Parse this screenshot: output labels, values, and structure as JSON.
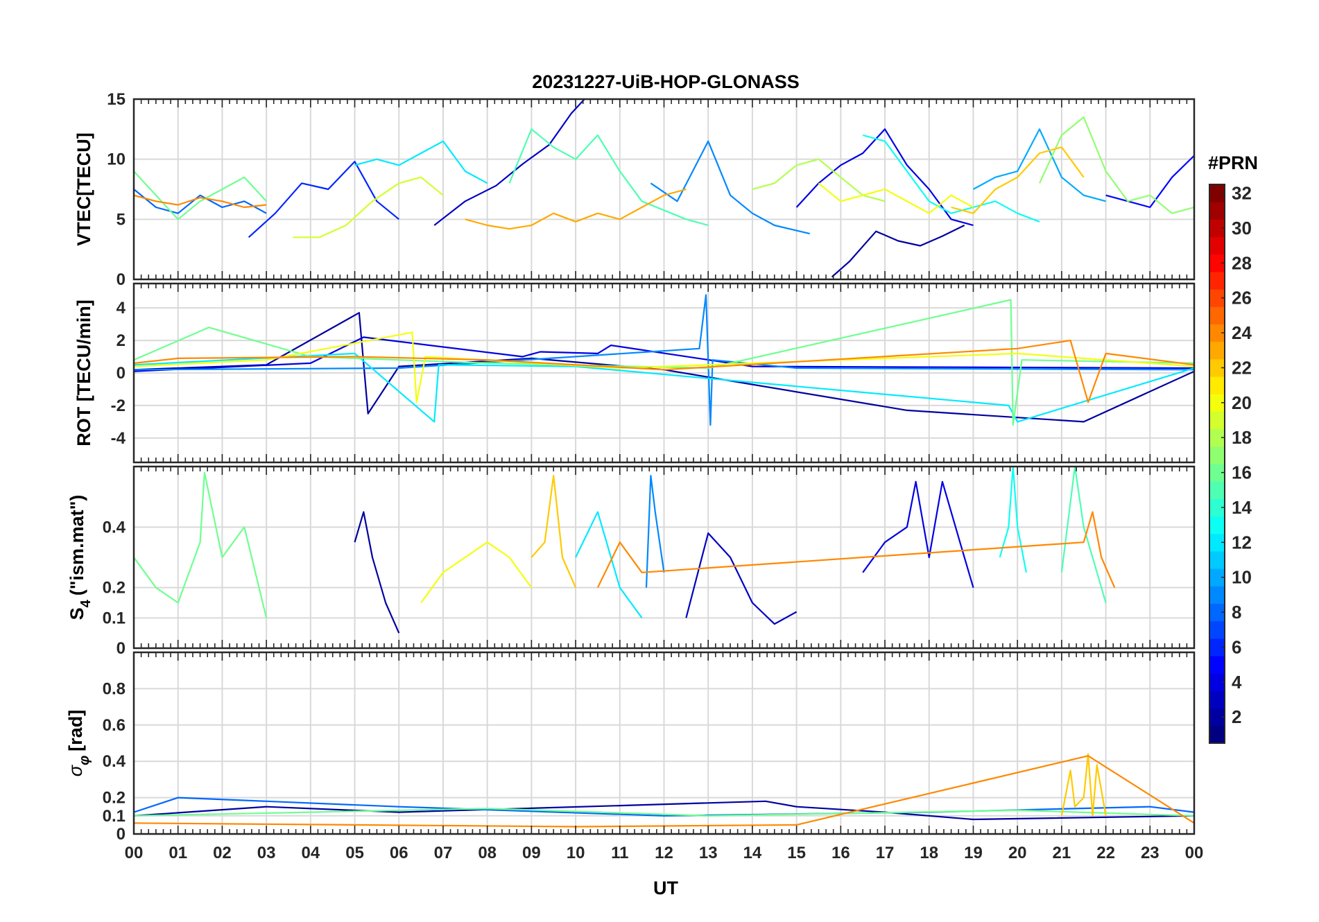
{
  "figure": {
    "title": "20231227-UiB-HOP-GLONASS",
    "xlabel": "UT",
    "x_ticks": [
      "00",
      "01",
      "02",
      "03",
      "04",
      "05",
      "06",
      "07",
      "08",
      "09",
      "10",
      "11",
      "12",
      "13",
      "14",
      "15",
      "16",
      "17",
      "18",
      "19",
      "20",
      "21",
      "22",
      "23",
      "00"
    ]
  },
  "colorbar": {
    "label": "#PRN",
    "range": [
      1,
      32
    ],
    "ticks": [
      2,
      4,
      6,
      8,
      10,
      12,
      14,
      16,
      18,
      20,
      22,
      24,
      26,
      28,
      30,
      32
    ],
    "tick_labels": [
      "2",
      "4",
      "6",
      "8",
      "10",
      "12",
      "14",
      "16",
      "18",
      "20",
      "22",
      "24",
      "26",
      "28",
      "30",
      "32"
    ],
    "colormap": "jet"
  },
  "chart_data": [
    {
      "type": "line",
      "panel": "vtec",
      "ylabel": "VTEC[TECU]",
      "xlim": [
        0,
        24
      ],
      "ylim": [
        0,
        15
      ],
      "yticks": [
        0,
        5,
        10,
        15
      ],
      "ytick_labels": [
        "0",
        "5",
        "10",
        "15"
      ],
      "series": [
        {
          "prn": 2,
          "x": [
            15.8,
            16.2,
            16.8,
            17.3,
            17.8,
            18.3,
            18.8
          ],
          "values": [
            0.2,
            1.5,
            4.0,
            3.2,
            2.8,
            3.6,
            4.5
          ]
        },
        {
          "prn": 3,
          "x": [
            6.8,
            7.5,
            8.2,
            8.8,
            9.4,
            9.9,
            10.2
          ],
          "values": [
            4.5,
            6.5,
            7.8,
            9.6,
            11.2,
            13.8,
            15.0
          ]
        },
        {
          "prn": 4,
          "x": [
            15.0,
            15.5,
            16.0,
            16.5,
            17.0,
            17.5,
            18.0,
            18.5,
            19.0
          ],
          "values": [
            6.0,
            8.0,
            9.5,
            10.5,
            12.5,
            9.5,
            7.5,
            5.0,
            4.5
          ]
        },
        {
          "prn": 5,
          "x": [
            22.0,
            22.5,
            23.0,
            23.5,
            24.0
          ],
          "values": [
            7.0,
            6.5,
            6.0,
            8.5,
            10.3
          ]
        },
        {
          "prn": 6,
          "x": [
            2.6,
            3.2,
            3.8,
            4.4,
            5.0,
            5.5,
            6.0
          ],
          "values": [
            3.5,
            5.5,
            8.0,
            7.5,
            9.8,
            6.5,
            5.0
          ]
        },
        {
          "prn": 8,
          "x": [
            0.0,
            0.5,
            1.0,
            1.5,
            2.0,
            2.5,
            3.0
          ],
          "values": [
            7.5,
            6.0,
            5.5,
            7.0,
            6.0,
            6.5,
            5.5
          ]
        },
        {
          "prn": 9,
          "x": [
            11.7,
            12.3,
            13.0,
            13.5,
            14.0,
            14.5,
            15.3
          ],
          "values": [
            8.0,
            6.5,
            11.5,
            7.0,
            5.5,
            4.5,
            3.8
          ]
        },
        {
          "prn": 10,
          "x": [
            19.0,
            19.5,
            20.0,
            20.5,
            21.0,
            21.5,
            22.0
          ],
          "values": [
            7.5,
            8.5,
            9.0,
            12.5,
            8.5,
            7.0,
            6.5
          ]
        },
        {
          "prn": 12,
          "x": [
            5.0,
            5.5,
            6.0,
            6.5,
            7.0,
            7.5,
            8.0
          ],
          "values": [
            9.5,
            10.0,
            9.5,
            10.5,
            11.5,
            9.0,
            8.0
          ]
        },
        {
          "prn": 13,
          "x": [
            16.5,
            17.0,
            17.5,
            18.0,
            18.5,
            19.0,
            19.5,
            20.0,
            20.5
          ],
          "values": [
            12.0,
            11.5,
            9.0,
            6.5,
            5.5,
            6.0,
            6.5,
            5.5,
            4.8
          ]
        },
        {
          "prn": 15,
          "x": [
            8.5,
            9.0,
            9.5,
            10.0,
            10.5,
            11.0,
            11.5,
            12.5,
            13.0
          ],
          "values": [
            8.0,
            12.5,
            11.0,
            10.0,
            12.0,
            9.0,
            6.5,
            5.0,
            4.5
          ]
        },
        {
          "prn": 16,
          "x": [
            0.0,
            0.5,
            1.0,
            1.5,
            2.0,
            2.5,
            3.0
          ],
          "values": [
            9.0,
            7.0,
            5.0,
            6.5,
            7.5,
            8.5,
            6.5
          ]
        },
        {
          "prn": 17,
          "x": [
            20.5,
            21.0,
            21.5,
            22.0,
            22.5,
            23.0,
            23.5,
            24.0
          ],
          "values": [
            8.0,
            12.0,
            13.5,
            9.0,
            6.5,
            7.0,
            5.5,
            6.0
          ]
        },
        {
          "prn": 18,
          "x": [
            14.0,
            14.5,
            15.0,
            15.5,
            16.0,
            16.5,
            17.0
          ],
          "values": [
            7.5,
            8.0,
            9.5,
            10.0,
            8.5,
            7.0,
            6.5
          ]
        },
        {
          "prn": 19,
          "x": [
            3.6,
            4.2,
            4.8,
            5.4,
            6.0,
            6.5,
            7.0
          ],
          "values": [
            3.5,
            3.5,
            4.5,
            6.5,
            8.0,
            8.5,
            7.0
          ]
        },
        {
          "prn": 20,
          "x": [
            15.5,
            16.0,
            16.5,
            17.0,
            17.5,
            18.0,
            18.5,
            19.0
          ],
          "values": [
            8.0,
            6.5,
            7.0,
            7.5,
            6.5,
            5.5,
            7.0,
            6.0
          ]
        },
        {
          "prn": 22,
          "x": [
            18.5,
            19.0,
            19.5,
            20.0,
            20.5,
            21.0,
            21.5
          ],
          "values": [
            6.0,
            5.5,
            7.5,
            8.5,
            10.5,
            11.0,
            8.5
          ]
        },
        {
          "prn": 23,
          "x": [
            7.5,
            8.0,
            8.5,
            9.0,
            9.5,
            10.0,
            10.5,
            11.0,
            11.5,
            12.0,
            12.5
          ],
          "values": [
            5.0,
            4.5,
            4.2,
            4.5,
            5.5,
            4.8,
            5.5,
            5.0,
            6.0,
            7.0,
            7.5
          ]
        },
        {
          "prn": 24,
          "x": [
            0.0,
            0.5,
            1.0,
            1.5,
            2.0,
            2.5,
            3.0
          ],
          "values": [
            7.0,
            6.5,
            6.2,
            6.8,
            6.5,
            6.0,
            6.2
          ]
        }
      ]
    },
    {
      "type": "line",
      "panel": "rot",
      "ylabel": "ROT [TECU/min]",
      "xlim": [
        0,
        24
      ],
      "ylim": [
        -5.5,
        5.5
      ],
      "yticks": [
        -4,
        -2,
        0,
        2,
        4
      ],
      "ytick_labels": [
        "-4",
        "-2",
        "0",
        "2",
        "4"
      ],
      "series": [
        {
          "prn": 2,
          "x": [
            0,
            3,
            5.1,
            5.3,
            6,
            9,
            12,
            17.5,
            21.5,
            24
          ],
          "values": [
            0.2,
            0.5,
            3.7,
            -2.5,
            0.4,
            0.9,
            0.2,
            -2.3,
            -3.0,
            0.1
          ]
        },
        {
          "prn": 4,
          "x": [
            0,
            4,
            5.2,
            8.8,
            9.2,
            10.5,
            10.8,
            14,
            24
          ],
          "values": [
            0.1,
            0.6,
            2.2,
            1.0,
            1.3,
            1.2,
            1.7,
            0.4,
            0.3
          ]
        },
        {
          "prn": 9,
          "x": [
            0,
            6,
            12.8,
            12.95,
            13.05,
            13.1,
            15,
            24
          ],
          "values": [
            0.2,
            0.3,
            1.5,
            4.8,
            -3.2,
            0.8,
            0.3,
            0.2
          ]
        },
        {
          "prn": 12,
          "x": [
            0,
            5,
            6.8,
            6.9,
            10,
            19.8,
            20,
            24
          ],
          "values": [
            0.5,
            1.2,
            -3.0,
            0.5,
            0.4,
            -2.0,
            -3.0,
            0.3
          ]
        },
        {
          "prn": 16,
          "x": [
            0,
            1.7,
            4,
            8,
            13,
            19.85,
            19.9,
            20.1,
            24
          ],
          "values": [
            0.8,
            2.8,
            1.0,
            0.6,
            0.3,
            4.5,
            -3.2,
            0.8,
            0.6
          ]
        },
        {
          "prn": 20,
          "x": [
            0,
            3,
            6.3,
            6.4,
            6.6,
            11,
            20,
            24
          ],
          "values": [
            0.4,
            0.8,
            2.5,
            -1.8,
            1.0,
            0.3,
            1.2,
            0.4
          ]
        },
        {
          "prn": 24,
          "x": [
            0,
            1,
            5,
            8,
            12,
            20,
            21.2,
            21.6,
            22,
            24
          ],
          "values": [
            0.6,
            0.9,
            1.0,
            0.8,
            0.2,
            1.5,
            2.0,
            -1.8,
            1.2,
            0.5
          ]
        }
      ]
    },
    {
      "type": "line",
      "panel": "s4",
      "ylabel": "S4 (\"ism.mat\")",
      "ylabel_main": "S",
      "ylabel_sub": "4",
      "ylabel_rest": "(\"ism.mat\")",
      "xlim": [
        0,
        24
      ],
      "ylim": [
        0,
        0.6
      ],
      "yticks": [
        0,
        0.1,
        0.2,
        0.4
      ],
      "ytick_labels": [
        "0",
        "0.1",
        "0.2",
        "0.4"
      ],
      "series": [
        {
          "prn": 2,
          "x": [
            5.0,
            5.2,
            5.4,
            5.7,
            6.0
          ],
          "values": [
            0.35,
            0.45,
            0.3,
            0.15,
            0.05
          ]
        },
        {
          "prn": 3,
          "x": [
            12.5,
            13.0,
            13.5,
            14.0,
            14.5,
            15.0
          ],
          "values": [
            0.1,
            0.38,
            0.3,
            0.15,
            0.08,
            0.12
          ]
        },
        {
          "prn": 4,
          "x": [
            16.5,
            17.0,
            17.5,
            17.7,
            18.0,
            18.3,
            18.7,
            19.0
          ],
          "values": [
            0.25,
            0.35,
            0.4,
            0.55,
            0.3,
            0.55,
            0.35,
            0.2
          ]
        },
        {
          "prn": 9,
          "x": [
            11.6,
            11.7,
            11.8,
            12.0
          ],
          "values": [
            0.2,
            0.57,
            0.45,
            0.25
          ]
        },
        {
          "prn": 12,
          "x": [
            10.0,
            10.5,
            11.0,
            11.5
          ],
          "values": [
            0.3,
            0.45,
            0.2,
            0.1
          ]
        },
        {
          "prn": 13,
          "x": [
            19.6,
            19.8,
            19.9,
            20.0,
            20.2
          ],
          "values": [
            0.3,
            0.4,
            0.6,
            0.4,
            0.25
          ]
        },
        {
          "prn": 16,
          "x": [
            0.0,
            0.5,
            1.0,
            1.5,
            1.6,
            2.0,
            2.5,
            3.0
          ],
          "values": [
            0.3,
            0.2,
            0.15,
            0.35,
            0.58,
            0.3,
            0.4,
            0.1
          ]
        },
        {
          "prn": 15,
          "x": [
            21.0,
            21.3,
            21.5,
            21.7,
            22.0
          ],
          "values": [
            0.25,
            0.6,
            0.4,
            0.3,
            0.15
          ]
        },
        {
          "prn": 20,
          "x": [
            6.5,
            7.0,
            7.5,
            8.0,
            8.5,
            9.0
          ],
          "values": [
            0.15,
            0.25,
            0.3,
            0.35,
            0.3,
            0.2
          ]
        },
        {
          "prn": 22,
          "x": [
            9.0,
            9.3,
            9.5,
            9.7,
            10.0
          ],
          "values": [
            0.3,
            0.35,
            0.57,
            0.3,
            0.2
          ]
        },
        {
          "prn": 24,
          "x": [
            10.5,
            11.0,
            11.5,
            21.5,
            21.7,
            21.9,
            22.2
          ],
          "values": [
            0.2,
            0.35,
            0.25,
            0.35,
            0.45,
            0.3,
            0.2
          ]
        }
      ]
    },
    {
      "type": "line",
      "panel": "sigma",
      "ylabel": "σφ[rad]",
      "ylabel_main": "σ",
      "ylabel_sub": "φ",
      "ylabel_rest": "[rad]",
      "xlim": [
        0,
        24
      ],
      "ylim": [
        0,
        1
      ],
      "yticks": [
        0,
        0.1,
        0.2,
        0.4,
        0.6,
        0.8
      ],
      "ytick_labels": [
        "0",
        "0.1",
        "0.2",
        "0.4",
        "0.6",
        "0.8"
      ],
      "series": [
        {
          "prn": 2,
          "x": [
            0,
            3,
            6,
            14.3,
            15,
            17,
            19,
            24
          ],
          "values": [
            0.1,
            0.15,
            0.12,
            0.18,
            0.15,
            0.12,
            0.08,
            0.1
          ]
        },
        {
          "prn": 8,
          "x": [
            0,
            1,
            6,
            12,
            18,
            23,
            24
          ],
          "values": [
            0.12,
            0.2,
            0.15,
            0.1,
            0.12,
            0.15,
            0.12
          ]
        },
        {
          "prn": 16,
          "x": [
            0,
            4,
            8,
            13,
            20,
            24
          ],
          "values": [
            0.1,
            0.12,
            0.14,
            0.1,
            0.13,
            0.1
          ]
        },
        {
          "prn": 22,
          "x": [
            21.0,
            21.2,
            21.3,
            21.5,
            21.6,
            21.7,
            21.8,
            22.0
          ],
          "values": [
            0.1,
            0.35,
            0.15,
            0.2,
            0.44,
            0.1,
            0.38,
            0.1
          ]
        },
        {
          "prn": 24,
          "x": [
            0,
            5,
            10,
            15,
            21.6,
            24
          ],
          "values": [
            0.06,
            0.05,
            0.04,
            0.05,
            0.43,
            0.06
          ]
        }
      ]
    }
  ]
}
